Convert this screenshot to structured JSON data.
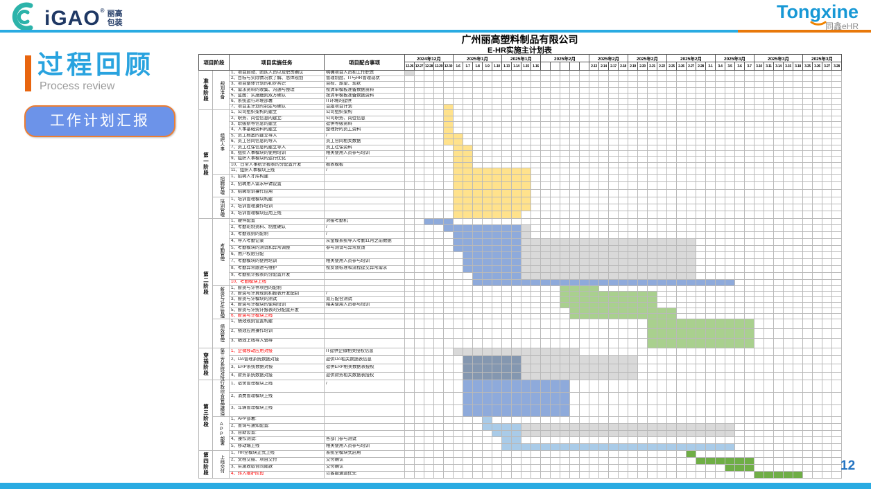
{
  "slide": {
    "logo_left": {
      "brand": "iGAO",
      "reg": "®",
      "line1": "丽高",
      "line2": "包装"
    },
    "logo_right": {
      "brand": "Tongxine",
      "sub": "同鑫eHR"
    },
    "title": "过程回顾",
    "subtitle": "Process review",
    "button_label": "工作计划汇报",
    "page_number": "12"
  },
  "table": {
    "title1": "广州丽高塑料制品有限公司",
    "title2": "E-HR实施主计划表",
    "headers": {
      "phase": "项目阶段",
      "task": "项目实施任务",
      "coop": "项目配合事项"
    },
    "colors": {
      "y": "#FFE28C",
      "b": "#8EAADB",
      "g": "#D9D9D9",
      "gr": "#A9D08E",
      "s": "#8497B0",
      "sk": "#A9CBE8",
      "dg": "#6FAE46"
    },
    "months": [
      {
        "label": "2024年12月",
        "dates": [
          "12-26",
          "12-27",
          "12-28",
          "12-29",
          "12-30"
        ]
      },
      {
        "label": "2025年1月",
        "dates": [
          "1-6",
          "1-7",
          "1-8",
          "1-9",
          "1-10"
        ]
      },
      {
        "label": "2025年1月",
        "dates": [
          "1-13",
          "1-14",
          "1-15",
          "1-16"
        ]
      },
      {
        "label": "2025年2月",
        "dates": [
          "2-6",
          "2-7",
          "2-10",
          "2-11",
          "2-12"
        ],
        "dark": true
      },
      {
        "label": "2025年2月",
        "dates": [
          "2-13",
          "2-14",
          "2-17",
          "2-18"
        ]
      },
      {
        "label": "2025年2月",
        "dates": [
          "2-19",
          "2-20",
          "2-21",
          "2-22"
        ]
      },
      {
        "label": "2025年2月",
        "dates": [
          "2-25",
          "2-26",
          "2-27",
          "2-28",
          "3-1"
        ]
      },
      {
        "label": "2025年3月",
        "dates": [
          "3-4",
          "3-5",
          "3-6",
          "3-7"
        ]
      },
      {
        "label": "2025年3月",
        "dates": [
          "3-10",
          "3-11",
          "3-14",
          "3-15",
          "3-18"
        ]
      },
      {
        "label": "2025年3月",
        "dates": [
          "3-25",
          "3-26",
          "3-27",
          "3-28"
        ]
      }
    ],
    "phases": [
      {
        "label": "准备阶段",
        "from": 0,
        "to": 0
      },
      {
        "label": "第一阶段",
        "from": 1,
        "to": 3
      },
      {
        "label": "第二阶段",
        "from": 4,
        "to": 6
      },
      {
        "label": "穿插阶段",
        "from": 7,
        "to": 7
      },
      {
        "label": "第三阶段",
        "from": 8,
        "to": 9
      },
      {
        "label": "第四阶段",
        "from": 10,
        "to": 10
      }
    ],
    "sections": [
      {
        "sub": "规划准备",
        "h": 8.2,
        "rows": [
          {
            "t": "1、项目启动、团队人员以及职责确认",
            "c": "明确项目人员和工作职责",
            "bars": [
              [
                0,
                0,
                "g"
              ]
            ]
          },
          {
            "t": "2、目标与实际情况状了解、总体规划",
            "c": "管理制度、IT与HR管理现状",
            "bars": []
          },
          {
            "t": "3、项目整体计划的初步共识",
            "c": "目标、期望、现状",
            "bars": []
          },
          {
            "t": "4、需求资料的收集、沟通与整理",
            "c": "按清单模板准备数据资料",
            "bars": []
          },
          {
            "t": "5、蓝图：实施细则双方确认",
            "c": "按清单模板准备数据资料",
            "bars": []
          },
          {
            "t": "6、系统运行环境部署",
            "c": "IT环境的提供",
            "bars": []
          },
          {
            "t": "7、项目主计划的制定与确认",
            "c": "首版项目计划",
            "bars": [
              [
                4,
                4,
                "y"
              ]
            ]
          }
        ]
      },
      {
        "sub": "组织人事",
        "h": 8.4,
        "rows": [
          {
            "t": "1、公司组织架构的建立",
            "c": "公司组织架构",
            "bars": [
              [
                4,
                4,
                "y"
              ]
            ]
          },
          {
            "t": "2、职务、岗位信息的建立:",
            "c": "公司职务、岗位信息",
            "bars": [
              [
                4,
                4,
                "y"
              ]
            ]
          },
          {
            "t": "3、职级薪等信息的建立",
            "c": "提供等级资料",
            "bars": [
              [
                4,
                4,
                "y"
              ]
            ]
          },
          {
            "t": "4、人事基础资料的建立",
            "c": "整理好的员工资料",
            "bars": [
              [
                4,
                4,
                "y"
              ]
            ]
          },
          {
            "t": "5、员工档案的建立导入",
            "c": "/",
            "bars": [
              [
                4,
                5,
                "y"
              ]
            ]
          },
          {
            "t": "6、员工合同信息的导入",
            "c": "员工合同相关数据",
            "bars": [
              [
                4,
                5,
                "y"
              ]
            ]
          },
          {
            "t": "7、员工社保信息的建立导入",
            "c": "员工社保资料",
            "bars": [
              [
                5,
                6,
                "y"
              ]
            ]
          },
          {
            "t": "8、组织人事模块的使用培训",
            "c": "相关使用人员参与培训",
            "bars": [
              [
                5,
                6,
                "y"
              ]
            ]
          },
          {
            "t": "9、组织人事模块的运行优化",
            "c": "/",
            "bars": [
              [
                5,
                6,
                "y"
              ]
            ]
          },
          {
            "t": "10、日常人事统计报表的分配置开发",
            "c": "报表模板",
            "bars": [
              [
                5,
                6,
                "y"
              ]
            ]
          },
          {
            "t": "11、组织人事模块上线",
            "c": "/",
            "bars": [
              [
                5,
                12,
                "y"
              ]
            ]
          }
        ]
      },
      {
        "sub": "招聘管理",
        "h": 11,
        "rows": [
          {
            "t": "1、招聘人才库构建",
            "c": "",
            "bars": [
              [
                5,
                12,
                "y"
              ]
            ]
          },
          {
            "t": "2、招聘用人需求申请设置",
            "c": "",
            "bars": [
              [
                5,
                12,
                "y"
              ]
            ]
          },
          {
            "t": "3、招聘培训操作应用",
            "c": "",
            "bars": [
              [
                5,
                12,
                "y"
              ]
            ]
          }
        ]
      },
      {
        "sub": "培训管理",
        "h": 10.3,
        "rows": [
          {
            "t": "1、培训管理模块构建",
            "c": "",
            "bars": [
              [
                5,
                12,
                "y"
              ]
            ]
          },
          {
            "t": "2、培训管理操作培训",
            "c": "",
            "bars": [
              [
                5,
                12,
                "y"
              ]
            ]
          },
          {
            "t": "3、培训管理模块应用上线",
            "c": "",
            "bars": [
              [
                5,
                11,
                "y"
              ]
            ]
          }
        ]
      },
      {
        "sub": "考勤管理",
        "h": 9.8,
        "rows": [
          {
            "t": "1、硬件配置",
            "c": "对接考勤机",
            "bars": [
              [
                2,
                4,
                "b"
              ]
            ]
          },
          {
            "t": "2、考勤班制资料、制度确认",
            "c": "/",
            "bars": [
              [
                4,
                11,
                "b"
              ],
              [
                12,
                12,
                "g"
              ]
            ]
          },
          {
            "t": "3、考勤规则的配制",
            "c": "/",
            "bars": [
              [
                5,
                11,
                "b"
              ],
              [
                12,
                12,
                "g"
              ]
            ]
          },
          {
            "t": "4、导入考勤记录",
            "c": "从金蝶系统导入考勤11月之前数据",
            "bars": [
              [
                5,
                11,
                "b"
              ],
              [
                12,
                29,
                "g"
              ]
            ]
          },
          {
            "t": "5、考勤模块的测试和异常调整",
            "c": "参与测试与异常反馈",
            "bars": [
              [
                5,
                11,
                "b"
              ],
              [
                12,
                29,
                "g"
              ]
            ]
          },
          {
            "t": "6、用户权限分配",
            "c": "",
            "bars": [
              [
                6,
                11,
                "b"
              ],
              [
                12,
                29,
                "g"
              ]
            ]
          },
          {
            "t": "7、考勤模块的使用培训",
            "c": "相关使用人员参与培训",
            "bars": [
              [
                6,
                11,
                "b"
              ],
              [
                12,
                29,
                "g"
              ]
            ]
          },
          {
            "t": "8、考勤异常跟进与维护",
            "c": "按反馈标准和流程提交异常需求",
            "bars": [
              [
                6,
                11,
                "b"
              ],
              [
                12,
                29,
                "g"
              ]
            ]
          },
          {
            "t": "9、考勤统计报表的分配置开发",
            "c": "",
            "bars": [
              [
                7,
                11,
                "b"
              ],
              [
                12,
                29,
                "g"
              ]
            ]
          },
          {
            "t": "10、考勤模块上线",
            "c": "",
            "red": true,
            "bars": [
              [
                7,
                33,
                "b"
              ]
            ]
          }
        ]
      },
      {
        "sub": "薪资与计件管理",
        "h": 7.9,
        "rows": [
          {
            "t": "1、薪资与计件项目的配制",
            "c": "",
            "bars": [
              [
                16,
                19,
                "gr"
              ]
            ]
          },
          {
            "t": "2、薪资与计算规则和报表开发配制",
            "c": "/",
            "bars": [
              [
                16,
                25,
                "gr"
              ]
            ]
          },
          {
            "t": "3、薪资与计模块的测试",
            "c": "双方配合测试",
            "bars": [
              [
                16,
                25,
                "gr"
              ]
            ]
          },
          {
            "t": "4、薪资与计模块的使用培训",
            "c": "相关使用人员参与培训",
            "bars": [
              [
                16,
                25,
                "gr"
              ]
            ]
          },
          {
            "t": "5、薪资与计统计报表的分配置开发",
            "c": "",
            "bars": [
              [
                17,
                27,
                "gr"
              ]
            ]
          },
          {
            "t": "6、薪资与计模块上线",
            "c": "",
            "red": true,
            "bars": [
              [
                17,
                27,
                "gr"
              ]
            ]
          }
        ]
      },
      {
        "sub": "绩效管理",
        "h": 14,
        "rows": [
          {
            "t": "1、绩效规则设置构建",
            "c": "",
            "bars": [
              [
                25,
                35,
                "gr"
              ]
            ]
          },
          {
            "t": "2、绩效应用操作培训",
            "c": "",
            "bars": [
              [
                25,
                35,
                "gr"
              ]
            ]
          },
          {
            "t": "3、绩效上线导入辅导",
            "c": "",
            "bars": [
              [
                25,
                35,
                "gr"
              ]
            ]
          }
        ]
      },
      {
        "sub": "第三方系统对接",
        "h": 9.3,
        "rows": [
          {
            "t": "1、企微移动应用对接",
            "c": "IT提供企微相关授权信息",
            "red": true,
            "bars": [
              [
                5,
                17,
                "g"
              ]
            ]
          },
          {
            "t": "2、OA管理系统数据对接",
            "c": "提供OA相关数据表信息",
            "bars": [
              [
                6,
                11,
                "s"
              ],
              [
                12,
                23,
                "g"
              ]
            ]
          },
          {
            "t": "3、ERP系统数据对接",
            "c": "提供ERP相关数据表授权",
            "bars": [
              [
                6,
                11,
                "s"
              ],
              [
                12,
                23,
                "g"
              ]
            ]
          },
          {
            "t": "4、财务系统数据对接",
            "c": "提供财务相关数据表授权",
            "bars": [
              [
                6,
                11,
                "s"
              ],
              [
                12,
                23,
                "g"
              ]
            ]
          }
        ]
      },
      {
        "sub": "行政综合管理模块",
        "h": 14.3,
        "rows": [
          {
            "t": "1、宿舍管理模块上线",
            "c": "/",
            "bars": [
              [
                6,
                16,
                "b"
              ]
            ]
          },
          {
            "t": "2、消费管理模块上线",
            "c": "",
            "bars": [
              [
                6,
                16,
                "b"
              ]
            ]
          },
          {
            "t": "3、车辆管理模块上线",
            "c": "",
            "bars": [
              [
                6,
                16,
                "b"
              ]
            ]
          }
        ]
      },
      {
        "sub": "APP部署",
        "h": 9.7,
        "rows": [
          {
            "t": "1、APP部署:",
            "c": "",
            "bars": [
              [
                8,
                8,
                "sk"
              ]
            ]
          },
          {
            "t": "2、查询与通知配置:",
            "c": "",
            "bars": [
              [
                8,
                11,
                "sk"
              ],
              [
                12,
                33,
                "g"
              ]
            ]
          },
          {
            "t": "3、自助设置:",
            "c": "",
            "bars": [
              [
                9,
                11,
                "sk"
              ],
              [
                12,
                33,
                "g"
              ]
            ]
          },
          {
            "t": "4、操作测试:",
            "c": "各部门参与测试",
            "bars": [
              [
                10,
                11,
                "sk"
              ]
            ]
          },
          {
            "t": "5、移动端上线",
            "c": "相关使用人员参与培训",
            "bars": [
              [
                10,
                33,
                "sk"
              ]
            ]
          }
        ]
      },
      {
        "sub": "上线交付",
        "h": 10,
        "rows": [
          {
            "t": "1、HR全模块正式上线",
            "c": "系统全模块式启用",
            "bars": [
              [
                29,
                29,
                "dg"
              ]
            ]
          },
          {
            "t": "2、文档交接、项目交付",
            "c": "交付确认",
            "bars": [
              [
                30,
                35,
                "dg"
              ]
            ]
          },
          {
            "t": "3、实施收取合同尾款",
            "c": "交付确认",
            "bars": [
              [
                33,
                35,
                "dg"
              ]
            ]
          },
          {
            "t": "4、转入维护阶段",
            "c": "以客服通道优先",
            "red": true,
            "bars": [
              [
                36,
                40,
                "dg"
              ]
            ]
          }
        ]
      }
    ]
  }
}
